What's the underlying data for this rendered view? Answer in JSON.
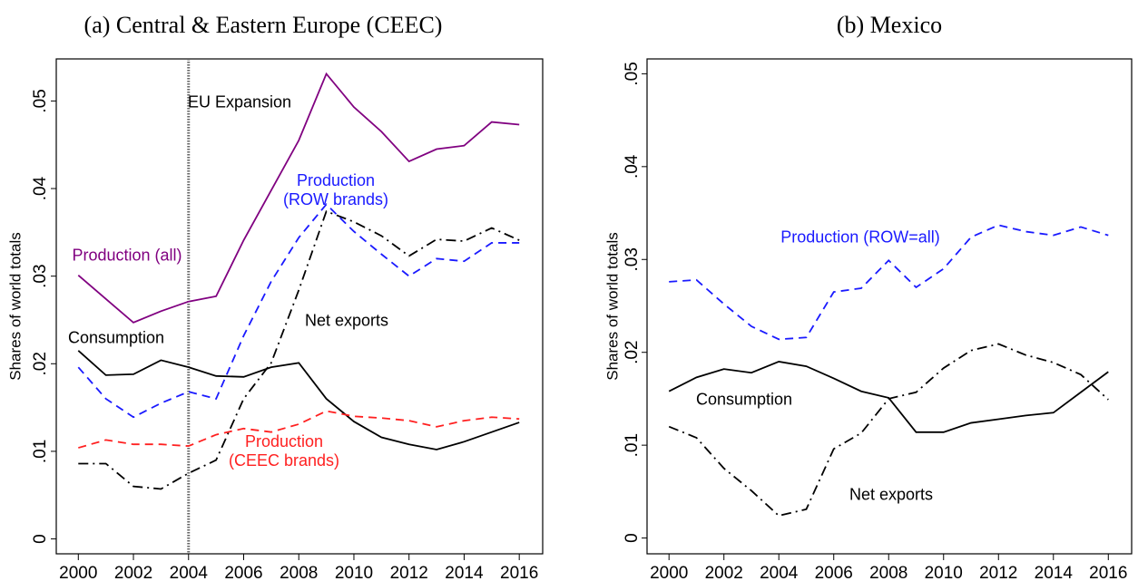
{
  "chart_data": [
    {
      "type": "line",
      "title": "(a) Central & Eastern Europe (CEEC)",
      "y_label": "Shares of world totals",
      "x": [
        2000,
        2001,
        2002,
        2003,
        2004,
        2005,
        2006,
        2007,
        2008,
        2009,
        2010,
        2011,
        2012,
        2013,
        2014,
        2015,
        2016
      ],
      "xlim": [
        1999.2,
        2016.85
      ],
      "xticks": [
        2000,
        2002,
        2004,
        2006,
        2008,
        2010,
        2012,
        2014,
        2016
      ],
      "ylim": [
        -0.0017,
        0.0548
      ],
      "yticks": [
        {
          "value": 0,
          "label": "0"
        },
        {
          "value": 0.01,
          "label": ".01"
        },
        {
          "value": 0.02,
          "label": ".02"
        },
        {
          "value": 0.03,
          "label": ".03"
        },
        {
          "value": 0.04,
          "label": ".04"
        },
        {
          "value": 0.05,
          "label": ".05"
        }
      ],
      "vline": {
        "x": 2004,
        "label": "EU Expansion"
      },
      "series": [
        {
          "name": "Production (all)",
          "color": "#800080",
          "dash": "solid",
          "values": [
            0.0301,
            0.0274,
            0.0247,
            0.026,
            0.0271,
            0.0277,
            0.0341,
            0.0398,
            0.0455,
            0.0531,
            0.0493,
            0.0465,
            0.0431,
            0.0445,
            0.0449,
            0.0476,
            0.0473
          ]
        },
        {
          "name": "Production (ROW brands)",
          "color": "#1a1aff",
          "dash": "dash",
          "values": [
            0.0196,
            0.016,
            0.0139,
            0.0155,
            0.0168,
            0.016,
            0.0232,
            0.0294,
            0.0344,
            0.0382,
            0.0351,
            0.0325,
            0.03,
            0.032,
            0.0317,
            0.0338,
            0.0338
          ]
        },
        {
          "name": "Net exports",
          "color": "#000000",
          "dash": "dashdot",
          "values": [
            0.0086,
            0.0086,
            0.006,
            0.0057,
            0.0075,
            0.009,
            0.016,
            0.0201,
            0.0284,
            0.0374,
            0.0362,
            0.0346,
            0.0323,
            0.0342,
            0.034,
            0.0355,
            0.0341
          ]
        },
        {
          "name": "Consumption",
          "color": "#000000",
          "dash": "solid",
          "values": [
            0.0215,
            0.0187,
            0.0188,
            0.0204,
            0.0196,
            0.0186,
            0.0185,
            0.0196,
            0.0201,
            0.016,
            0.0134,
            0.0116,
            0.0108,
            0.0102,
            0.0111,
            0.0122,
            0.0133
          ]
        },
        {
          "name": "Production (CEEC brands)",
          "color": "#ff2020",
          "dash": "dash",
          "values": [
            0.0104,
            0.0113,
            0.0108,
            0.0108,
            0.0106,
            0.0119,
            0.0126,
            0.0122,
            0.0131,
            0.0146,
            0.014,
            0.0138,
            0.0135,
            0.0128,
            0.0135,
            0.0139,
            0.0137
          ]
        }
      ]
    },
    {
      "type": "line",
      "title": "(b) Mexico",
      "y_label": "Shares of world totals",
      "x": [
        2000,
        2001,
        2002,
        2003,
        2004,
        2005,
        2006,
        2007,
        2008,
        2009,
        2010,
        2011,
        2012,
        2013,
        2014,
        2015,
        2016
      ],
      "xlim": [
        1999.2,
        2016.85
      ],
      "xticks": [
        2000,
        2002,
        2004,
        2006,
        2008,
        2010,
        2012,
        2014,
        2016
      ],
      "ylim": [
        -0.0017,
        0.0516
      ],
      "yticks": [
        {
          "value": 0,
          "label": "0"
        },
        {
          "value": 0.01,
          "label": ".01"
        },
        {
          "value": 0.02,
          "label": ".02"
        },
        {
          "value": 0.03,
          "label": ".03"
        },
        {
          "value": 0.04,
          "label": ".04"
        },
        {
          "value": 0.05,
          "label": ".05"
        }
      ],
      "series": [
        {
          "name": "Production (ROW=all)",
          "color": "#1a1aff",
          "dash": "dash",
          "values": [
            0.0276,
            0.0278,
            0.0252,
            0.0228,
            0.0214,
            0.0216,
            0.0265,
            0.0269,
            0.0299,
            0.027,
            0.029,
            0.0324,
            0.0337,
            0.033,
            0.0326,
            0.0335,
            0.0326
          ]
        },
        {
          "name": "Consumption",
          "color": "#000000",
          "dash": "solid",
          "values": [
            0.0158,
            0.0173,
            0.0182,
            0.0178,
            0.019,
            0.0185,
            0.0172,
            0.0158,
            0.0151,
            0.0114,
            0.0114,
            0.0124,
            0.0128,
            0.0132,
            0.0135,
            0.0157,
            0.0179
          ]
        },
        {
          "name": "Net exports",
          "color": "#000000",
          "dash": "dashdot",
          "values": [
            0.012,
            0.0108,
            0.0075,
            0.0051,
            0.0024,
            0.0031,
            0.0096,
            0.0113,
            0.015,
            0.0157,
            0.0183,
            0.0202,
            0.0209,
            0.0197,
            0.0189,
            0.0176,
            0.0149
          ]
        }
      ]
    }
  ]
}
